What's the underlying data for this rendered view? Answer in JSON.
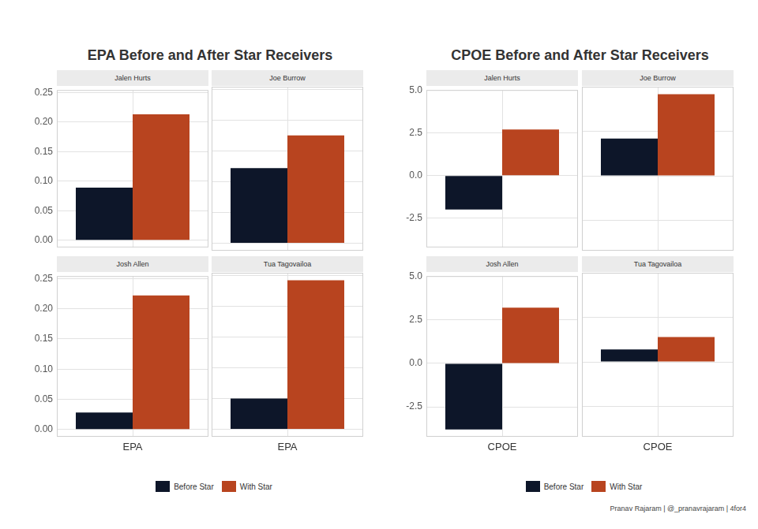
{
  "chart_data": [
    {
      "type": "bar",
      "title": "EPA Before and After Star Receivers",
      "categories": [
        "EPA"
      ],
      "ylim": [
        -0.012,
        0.254
      ],
      "yticks": [
        {
          "value": 0,
          "label": "0.00"
        },
        {
          "value": 0.05,
          "label": "0.05"
        },
        {
          "value": 0.1,
          "label": "0.10"
        },
        {
          "value": 0.15,
          "label": "0.15"
        },
        {
          "value": 0.2,
          "label": "0.20"
        },
        {
          "value": 0.25,
          "label": "0.25"
        }
      ],
      "grid": true,
      "legend": "bottom",
      "facets": [
        {
          "title": "Jalen Hurts",
          "series": [
            {
              "name": "Before Star",
              "color": "#0d1629",
              "values": [
                0.089
              ]
            },
            {
              "name": "With Star",
              "color": "#b8441f",
              "values": [
                0.213
              ]
            }
          ]
        },
        {
          "title": "Joe Burrow",
          "series": [
            {
              "name": "Before Star",
              "color": "#0d1629",
              "values": [
                0.122
              ]
            },
            {
              "name": "With Star",
              "color": "#b8441f",
              "values": [
                0.175
              ]
            }
          ]
        },
        {
          "title": "Josh Allen",
          "series": [
            {
              "name": "Before Star",
              "color": "#0d1629",
              "values": [
                0.028
              ]
            },
            {
              "name": "With Star",
              "color": "#b8441f",
              "values": [
                0.222
              ]
            }
          ]
        },
        {
          "title": "Tua Tagovailoa",
          "series": [
            {
              "name": "Before Star",
              "color": "#0d1629",
              "values": [
                0.05
              ]
            },
            {
              "name": "With Star",
              "color": "#b8441f",
              "values": [
                0.242
              ]
            }
          ]
        }
      ]
    },
    {
      "type": "bar",
      "title": "CPOE Before and After Star Receivers",
      "categories": [
        "CPOE"
      ],
      "ylim": [
        -4.22,
        5.02
      ],
      "yticks": [
        -2.5,
        {
          "value": 0,
          "label": "0.0"
        },
        2.5,
        {
          "value": 5,
          "label": "5.0"
        }
      ],
      "grid": true,
      "legend": "bottom",
      "facets": [
        {
          "title": "Jalen Hurts",
          "series": [
            {
              "name": "Before Star",
              "color": "#0d1629",
              "values": [
                -2.0
              ]
            },
            {
              "name": "With Star",
              "color": "#b8441f",
              "values": [
                2.7
              ]
            }
          ]
        },
        {
          "title": "Joe Burrow",
          "series": [
            {
              "name": "Before Star",
              "color": "#0d1629",
              "values": [
                2.1
              ]
            },
            {
              "name": "With Star",
              "color": "#b8441f",
              "values": [
                4.6
              ]
            }
          ]
        },
        {
          "title": "Josh Allen",
          "series": [
            {
              "name": "Before Star",
              "color": "#0d1629",
              "values": [
                -3.8
              ]
            },
            {
              "name": "With Star",
              "color": "#b8441f",
              "values": [
                3.2
              ]
            }
          ]
        },
        {
          "title": "Tua Tagovailoa",
          "series": [
            {
              "name": "Before Star",
              "color": "#0d1629",
              "values": [
                0.7
              ]
            },
            {
              "name": "With Star",
              "color": "#b8441f",
              "values": [
                1.4
              ]
            }
          ]
        }
      ]
    }
  ],
  "caption": "Pranav Rajaram | @_pranavrajaram | 4for4"
}
